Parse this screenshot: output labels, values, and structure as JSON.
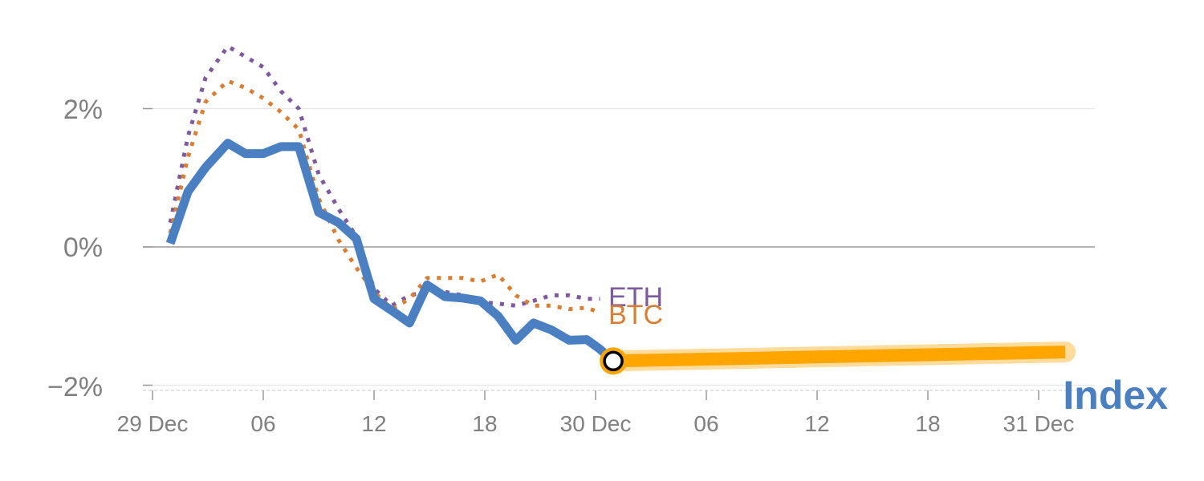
{
  "chart_data": {
    "type": "line",
    "y_axis": {
      "ticks": [
        {
          "value": 2,
          "label": "2%"
        },
        {
          "value": 0,
          "label": "0%"
        },
        {
          "value": -2,
          "label": "−2%"
        }
      ],
      "range": [
        -2.0,
        3.0
      ],
      "grid": true
    },
    "x_axis": {
      "range": [
        0,
        42
      ],
      "ticks": [
        {
          "value": 0,
          "label": "29 Dec"
        },
        {
          "value": 5,
          "label": "06"
        },
        {
          "value": 10,
          "label": "12"
        },
        {
          "value": 15,
          "label": "18"
        },
        {
          "value": 20,
          "label": "30 Dec"
        },
        {
          "value": 25,
          "label": "06"
        },
        {
          "value": 30,
          "label": "12"
        },
        {
          "value": 35,
          "label": "18"
        },
        {
          "value": 40,
          "label": "31 Dec"
        }
      ]
    },
    "series": [
      {
        "name": "Index",
        "role": "actual",
        "color": "#4a7fc1",
        "style": "solid",
        "x": [
          0.8,
          1.6,
          2.4,
          3.4,
          4.2,
          5.0,
          5.8,
          6.6,
          7.5,
          8.4,
          9.2,
          10.0,
          10.8,
          11.6,
          12.4,
          13.2,
          14.0,
          14.8,
          15.6,
          16.4,
          17.2,
          18.0,
          18.8,
          19.6,
          20.2,
          20.8
        ],
        "values": [
          0.05,
          0.8,
          1.15,
          1.5,
          1.35,
          1.35,
          1.45,
          1.45,
          0.5,
          0.35,
          0.12,
          -0.75,
          -0.92,
          -1.1,
          -0.55,
          -0.72,
          -0.74,
          -0.78,
          -1.0,
          -1.35,
          -1.1,
          -1.2,
          -1.35,
          -1.34,
          -1.48,
          -1.65
        ]
      },
      {
        "name": "ETH",
        "color": "#7d5a9e",
        "style": "dotted",
        "x": [
          0.8,
          1.6,
          2.4,
          3.4,
          4.2,
          5.0,
          5.8,
          6.6,
          7.5,
          8.4,
          9.2,
          10.0,
          10.8,
          11.6,
          12.4,
          13.2,
          14.0,
          14.8,
          15.6,
          16.4,
          17.2,
          18.0,
          18.8,
          19.6,
          20.2
        ],
        "values": [
          0.35,
          1.6,
          2.45,
          2.9,
          2.75,
          2.6,
          2.25,
          2.0,
          1.05,
          0.55,
          0.15,
          -0.6,
          -0.85,
          -0.7,
          -0.65,
          -0.65,
          -0.7,
          -0.8,
          -0.82,
          -0.85,
          -0.78,
          -0.7,
          -0.7,
          -0.75,
          -0.75
        ]
      },
      {
        "name": "BTC",
        "color": "#d97e33",
        "style": "dotted",
        "x": [
          0.8,
          1.6,
          2.4,
          3.4,
          4.2,
          5.0,
          5.8,
          6.6,
          7.5,
          8.4,
          9.2,
          10.0,
          10.8,
          11.6,
          12.4,
          13.2,
          14.0,
          14.8,
          15.6,
          16.4,
          17.2,
          18.0,
          18.8,
          19.6,
          20.2
        ],
        "values": [
          0.2,
          1.3,
          2.1,
          2.4,
          2.3,
          2.15,
          1.95,
          1.7,
          0.7,
          0.1,
          -0.3,
          -0.65,
          -0.9,
          -0.75,
          -0.45,
          -0.45,
          -0.45,
          -0.5,
          -0.4,
          -0.7,
          -0.85,
          -0.85,
          -0.9,
          -0.88,
          -0.95
        ]
      },
      {
        "name": "Index",
        "role": "projection",
        "color": "#ffa500",
        "style": "thick",
        "x": [
          20.8,
          41.2
        ],
        "values": [
          -1.65,
          -1.52
        ]
      }
    ],
    "labels": {
      "eth": "ETH",
      "btc": "BTC",
      "index": "Index"
    },
    "marker": {
      "x": 20.8,
      "value": -1.65
    }
  }
}
